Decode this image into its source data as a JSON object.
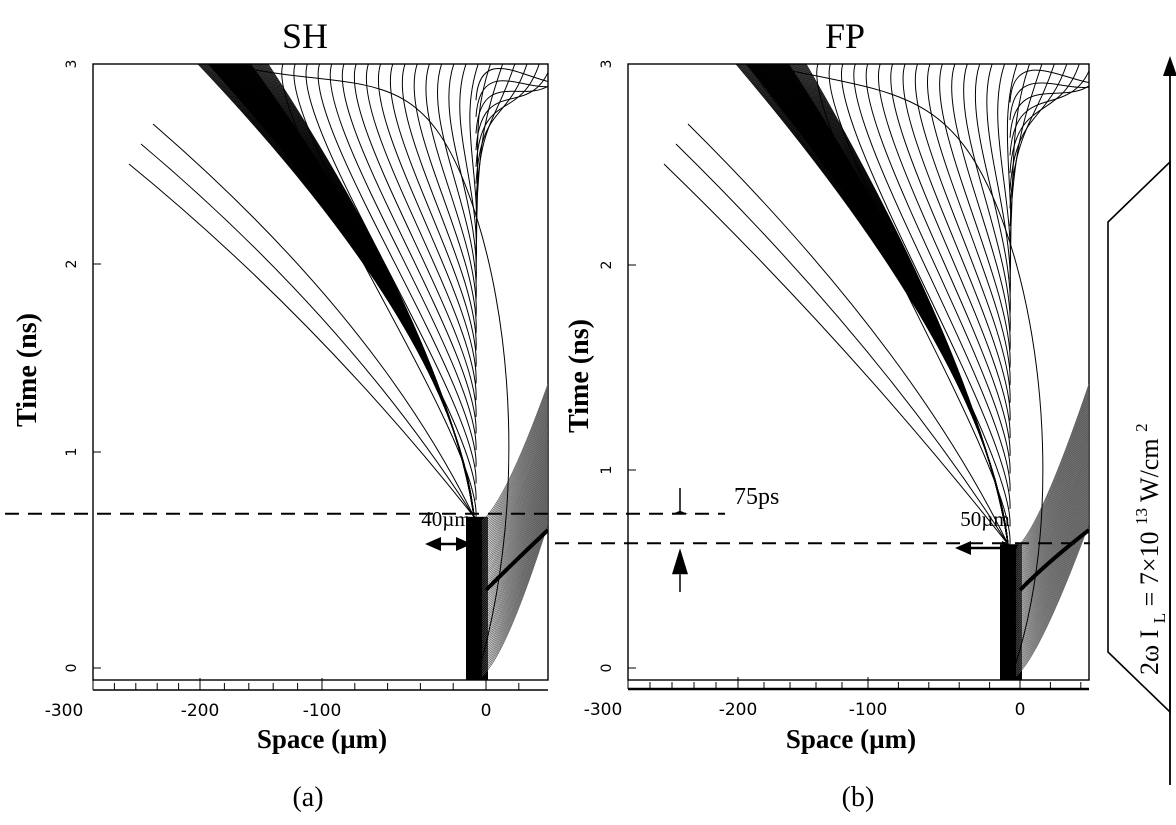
{
  "chart_data": [
    {
      "type": "line",
      "title": "SH",
      "caption": "(a)",
      "xlabel": "Space (µm)",
      "ylabel": "Time (ns)",
      "xlim": [
        -300,
        50
      ],
      "ylim": [
        0,
        3
      ],
      "x_ticks": [
        -300,
        -200,
        -100,
        0
      ],
      "y_ticks": [
        0,
        1,
        2,
        3
      ],
      "ablation_front_onset_ns": 0.7,
      "annotations": [
        {
          "text": "40µm",
          "kind": "double-arrow",
          "x_from": -50,
          "x_to": -10,
          "y": 1.6
        }
      ]
    },
    {
      "type": "line",
      "title": "FP",
      "caption": "(b)",
      "xlabel": "Space (µm)",
      "ylabel": "Time (ns)",
      "xlim": [
        -300,
        50
      ],
      "ylim": [
        0,
        3
      ],
      "x_ticks": [
        -300,
        -200,
        -100,
        0
      ],
      "y_ticks": [
        0,
        1,
        2,
        3
      ],
      "ablation_front_onset_ns": 0.625,
      "annotations": [
        {
          "text": "50µm",
          "kind": "double-arrow",
          "x_from": -55,
          "x_to": -5,
          "y": 1.55
        },
        {
          "text": "75ps",
          "kind": "gap-arrows",
          "y_from": 0.625,
          "y_to": 0.7
        }
      ]
    }
  ],
  "laser": {
    "label_prefix": "2ω",
    "label_symbol": "I",
    "label_sub": "L",
    "label_eq": " = 7×10",
    "label_exp": "13",
    "label_unit": " W/cm",
    "label_unit_exp": "2"
  }
}
